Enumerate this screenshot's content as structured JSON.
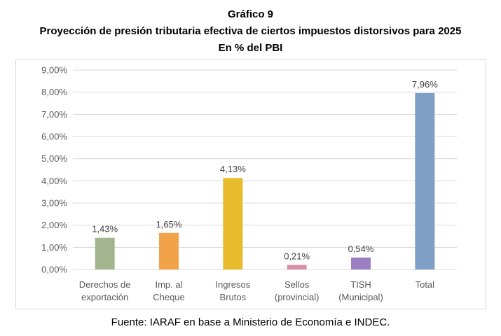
{
  "title_lines": [
    "Gráfico 9",
    "Proyección de presión tributaria efectiva de ciertos impuestos distorsivos para 2025",
    "En % del PBI"
  ],
  "source": "Fuente: IARAF en base a Ministerio de Economía e INDEC.",
  "chart_data": {
    "type": "bar",
    "title": "Gráfico 9 — Proyección de presión tributaria efectiva de ciertos impuestos distorsivos para 2025 — En % del PBI",
    "categories": [
      [
        "Derechos de",
        "exportación"
      ],
      [
        "Imp. al",
        "Cheque"
      ],
      [
        "Ingresos",
        "Brutos"
      ],
      [
        "Sellos",
        "(provincial)"
      ],
      [
        "TISH",
        "(Municipal)"
      ],
      [
        "Total"
      ]
    ],
    "values": [
      1.43,
      1.65,
      4.13,
      0.21,
      0.54,
      7.96
    ],
    "data_labels": [
      "1,43%",
      "1,65%",
      "4,13%",
      "0,21%",
      "0,54%",
      "7,96%"
    ],
    "colors": [
      "#a3b58e",
      "#f2a34a",
      "#e8bb2c",
      "#d98fa8",
      "#9c7fc2",
      "#7f9fc6"
    ],
    "ylim": [
      0,
      9
    ],
    "yticks": [
      "0,00%",
      "1,00%",
      "2,00%",
      "3,00%",
      "4,00%",
      "5,00%",
      "6,00%",
      "7,00%",
      "8,00%",
      "9,00%"
    ],
    "grid": true,
    "legend": "none"
  }
}
